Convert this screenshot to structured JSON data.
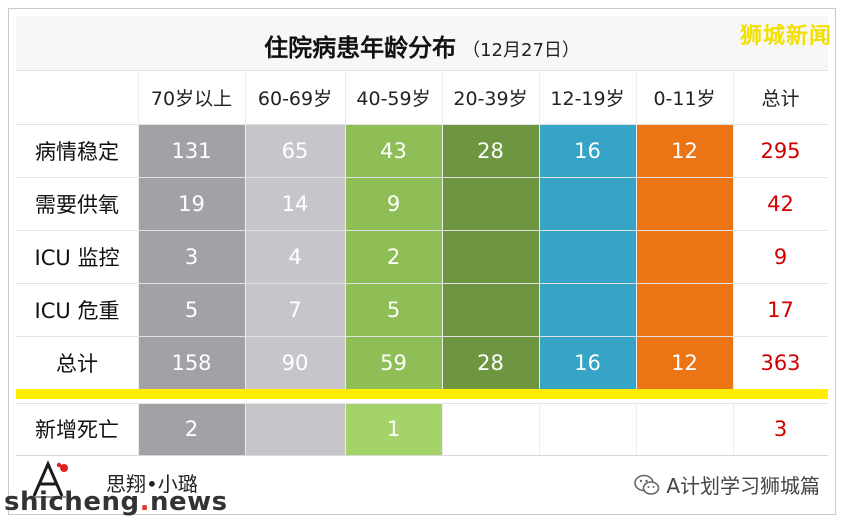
{
  "title": "住院病患年龄分布",
  "date": "（12月27日）",
  "watermark_top": "狮城新闻",
  "columns": [
    "70岁以上",
    "60-69岁",
    "40-59岁",
    "20-39岁",
    "12-19岁",
    "0-11岁",
    "总计"
  ],
  "rows": [
    {
      "label": "病情稳定",
      "values": [
        "131",
        "65",
        "43",
        "28",
        "16",
        "12"
      ],
      "total": "295"
    },
    {
      "label": "需要供氧",
      "values": [
        "19",
        "14",
        "9",
        "",
        "",
        ""
      ],
      "total": "42"
    },
    {
      "label": "ICU 监控",
      "values": [
        "3",
        "4",
        "2",
        "",
        "",
        ""
      ],
      "total": "9"
    },
    {
      "label": "ICU 危重",
      "values": [
        "5",
        "7",
        "5",
        "",
        "",
        ""
      ],
      "total": "17"
    },
    {
      "label": "总计",
      "values": [
        "158",
        "90",
        "59",
        "28",
        "16",
        "12"
      ],
      "total": "363"
    }
  ],
  "death_row": {
    "label": "新增死亡",
    "values": [
      "2",
      "",
      "1",
      "",
      "",
      ""
    ],
    "total": "3"
  },
  "column_colors": [
    "#a3a1a6",
    "#c7c5c9",
    "#8ebe55",
    "#6e9540",
    "#35a4c6",
    "#eb7514"
  ],
  "death_colors": [
    "#a3a1a6",
    "#c7c5c9",
    "#a4d36a",
    "#ffffff",
    "#ffffff",
    "#ffffff"
  ],
  "total_color": "#d10000",
  "footer": {
    "author": "思翔•小璐",
    "wechat_account": "A计划学习狮城篇",
    "site_prefix": "shicheng",
    "site_dot": ".",
    "site_suffix": "news"
  },
  "icons": {
    "wechat": "wechat-icon",
    "logo": "a-plan-logo"
  }
}
